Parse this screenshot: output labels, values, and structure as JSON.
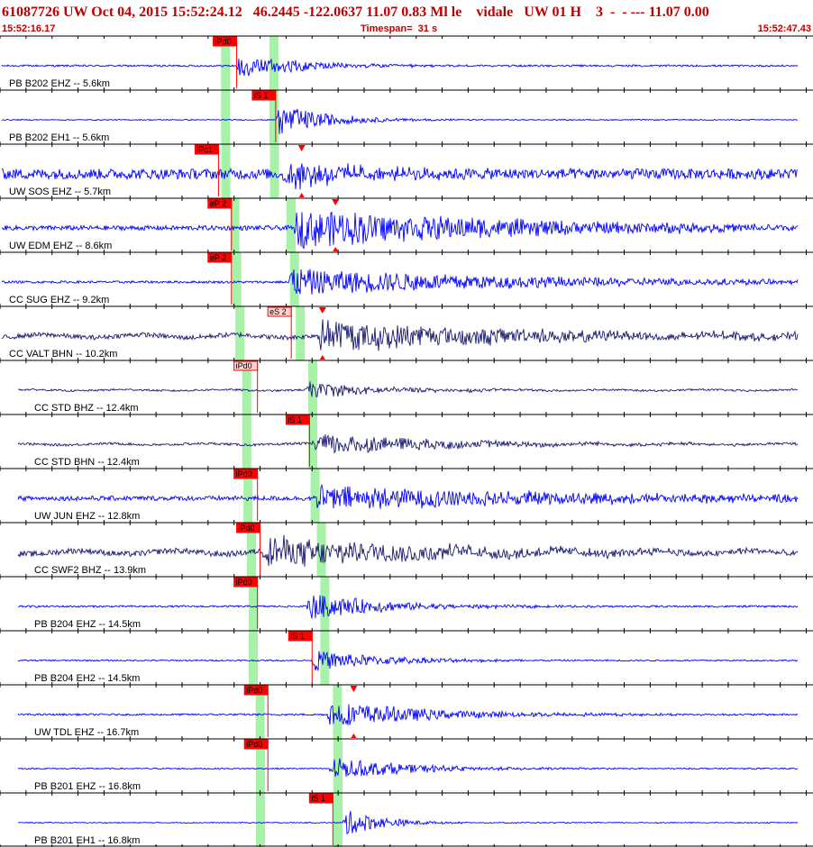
{
  "header": {
    "event_line": "61087726 UW Oct 04, 2015 15:52:24.12   46.2445 -122.0637 11.07 0.83 Ml le    vidale   UW 01 H    3  -  - --- 11.07 0.00",
    "start_time": "15:52:16.17",
    "timespan": "Timespan=  31 s",
    "end_time": "15:52:47.43"
  },
  "colors": {
    "header_text": "#c00000",
    "trace_vertical": "#0000ff",
    "trace_horizontal": "#1a1a6e",
    "pick_box": "#ff0000",
    "pick_box_light": "#ffd0d0",
    "window_band": "#9ef09e",
    "divider": "#000000"
  },
  "chart_data": {
    "type": "line",
    "title": "61087726 UW Oct 04, 2015 15:52:24.12   46.2445 -122.0637 11.07 0.83 Ml le    vidale   UW 01 H    3  -  - --- 11.07 0.00",
    "x_start": "15:52:16.17",
    "x_end": "15:52:47.43",
    "timespan_s": 31,
    "xlim": [
      0,
      31.26
    ],
    "grid": false,
    "series": [
      {
        "name": "PB B202 EHZ -- 5.6km",
        "kind": "vertical",
        "distance_km": 5.6,
        "pick": {
          "label": "iPd0",
          "t": 9.1
        },
        "onset_s": 9.1,
        "noise": 0.04,
        "amp": 0.55,
        "decay_s": 2.5
      },
      {
        "name": "PB B202 EH1 -- 5.6km",
        "kind": "vertical",
        "distance_km": 5.6,
        "pick": {
          "label": "iS 1",
          "t": 10.6
        },
        "onset_s": 10.6,
        "noise": 0.02,
        "amp": 0.7,
        "decay_s": 2.0
      },
      {
        "name": "UW SOS EHZ -- 5.7km",
        "kind": "vertical",
        "distance_km": 5.7,
        "pick": {
          "label": "iPc1",
          "t": 8.4
        },
        "s_marker_t": 11.6,
        "onset_s": 10.8,
        "noise": 0.22,
        "amp": 0.6,
        "decay_s": 3.0
      },
      {
        "name": "UW EDM EHZ -- 8.6km",
        "kind": "vertical",
        "distance_km": 8.6,
        "pick": {
          "label": "eP 2",
          "t": 8.9
        },
        "s_marker_t": 12.9,
        "onset_s": 11.3,
        "noise": 0.1,
        "amp": 0.85,
        "decay_s": 9.0
      },
      {
        "name": "CC SUG EHZ -- 9.2km",
        "kind": "vertical",
        "distance_km": 9.2,
        "pick": {
          "label": "eP 2",
          "t": 8.9
        },
        "onset_s": 10.9,
        "noise": 0.05,
        "amp": 0.6,
        "decay_s": 10.0
      },
      {
        "name": "CC VALT BHN -- 10.2km",
        "kind": "horizontal",
        "distance_km": 10.2,
        "pick": {
          "label": "eS 2",
          "t": 11.2
        },
        "s_marker_t": 12.4,
        "onset_s": 12.2,
        "noise": 0.1,
        "amp": 0.65,
        "decay_s": 9.0
      },
      {
        "name": "CC STD BHZ -- 12.4km",
        "kind": "horizontal",
        "distance_km": 12.4,
        "pick": {
          "label": "iPd0",
          "t": 9.9
        },
        "onset_s": 11.8,
        "noise": 0.04,
        "amp": 0.35,
        "decay_s": 3.0
      },
      {
        "name": "CC STD BHN -- 12.4km",
        "kind": "horizontal",
        "distance_km": 12.4,
        "pick": {
          "label": "iS 1",
          "t": 11.9
        },
        "onset_s": 12.0,
        "noise": 0.05,
        "amp": 0.5,
        "decay_s": 5.0
      },
      {
        "name": "UW JUN EHZ -- 12.8km",
        "kind": "vertical",
        "distance_km": 12.8,
        "pick": {
          "label": "iPd0",
          "t": 9.9
        },
        "onset_s": 12.1,
        "noise": 0.1,
        "amp": 0.5,
        "decay_s": 12.0
      },
      {
        "name": "CC SWF2 BHZ -- 13.9km",
        "kind": "horizontal",
        "distance_km": 13.9,
        "pick": {
          "label": "iPd0",
          "t": 10.0
        },
        "onset_s": 10.1,
        "noise": 0.12,
        "amp": 0.7,
        "decay_s": 7.0
      },
      {
        "name": "PB B204 EHZ -- 14.5km",
        "kind": "vertical",
        "distance_km": 14.5,
        "pick": {
          "label": "iPd0",
          "t": 9.9
        },
        "onset_s": 11.8,
        "noise": 0.04,
        "amp": 0.6,
        "decay_s": 3.0
      },
      {
        "name": "PB B204 EH2 -- 14.5km",
        "kind": "vertical",
        "distance_km": 14.5,
        "pick": {
          "label": "iS 1",
          "t": 12.0
        },
        "onset_s": 12.0,
        "noise": 0.03,
        "amp": 0.45,
        "decay_s": 3.0
      },
      {
        "name": "UW TDL EHZ -- 16.7km",
        "kind": "vertical",
        "distance_km": 16.7,
        "pick": {
          "label": "iPd0",
          "t": 10.3
        },
        "s_marker_t": 13.6,
        "onset_s": 12.6,
        "noise": 0.04,
        "amp": 0.6,
        "decay_s": 4.0
      },
      {
        "name": "PB B201 EHZ -- 16.8km",
        "kind": "vertical",
        "distance_km": 16.8,
        "pick": {
          "label": "iPd0",
          "t": 10.3
        },
        "onset_s": 12.6,
        "noise": 0.03,
        "amp": 0.5,
        "decay_s": 3.0
      },
      {
        "name": "PB B201 EH1 -- 16.8km",
        "kind": "vertical",
        "distance_km": 16.8,
        "pick": {
          "label": "iS 1",
          "t": 12.8
        },
        "onset_s": 13.2,
        "noise": 0.02,
        "amp": 0.6,
        "decay_s": 1.5
      }
    ]
  }
}
